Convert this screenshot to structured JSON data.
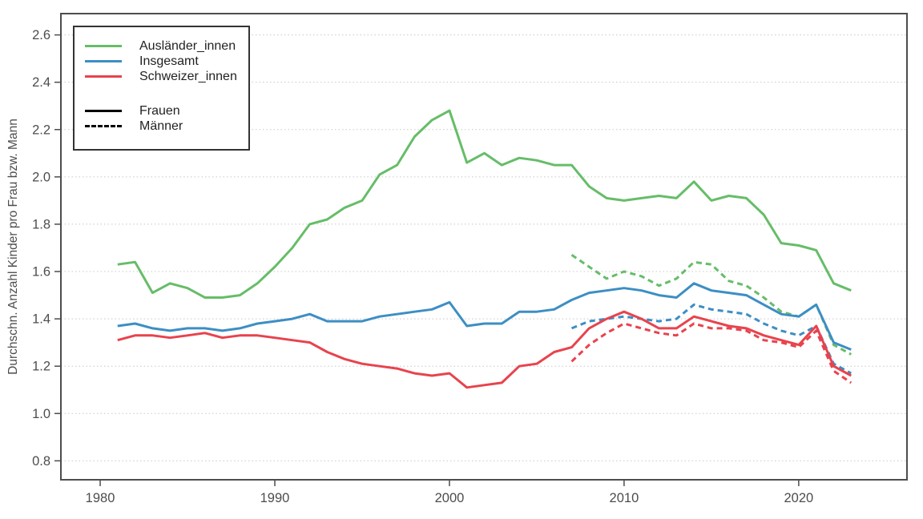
{
  "figure": {
    "y_axis_title": "Durchschn. Anzahl Kinder pro Frau bzw. Mann"
  },
  "colors": {
    "auslaender": "#66bd68",
    "insgesamt": "#3d8ec4",
    "schweizer": "#e8434d",
    "panel_border": "#4d4d4d",
    "gridline": "#c8c8c8",
    "tick_text": "#4d4d4d"
  },
  "legend": {
    "series": [
      {
        "label": "Ausländer_innen",
        "color": "#66bd68"
      },
      {
        "label": "Insgesamt",
        "color": "#3d8ec4"
      },
      {
        "label": "Schweizer_innen",
        "color": "#e8434d"
      }
    ],
    "linetypes": [
      {
        "label": "Frauen",
        "style": "solid"
      },
      {
        "label": "Männer",
        "style": "dashed"
      }
    ]
  },
  "chart_data": {
    "type": "line",
    "title": "",
    "xlabel": "",
    "ylabel": "Durchschn. Anzahl Kinder pro Frau bzw. Mann",
    "xlim": [
      1977.75,
      2026.2
    ],
    "ylim": [
      0.72,
      2.69
    ],
    "x_ticks": [
      1980,
      1990,
      2000,
      2010,
      2020
    ],
    "x_tick_labels": [
      "1980",
      "1990",
      "2000",
      "2010",
      "2020"
    ],
    "y_ticks": [
      0.8,
      1.0,
      1.2,
      1.4,
      1.6,
      1.8,
      2.0,
      2.2,
      2.4,
      2.6
    ],
    "y_tick_labels": [
      "0.8",
      "1.0",
      "1.2",
      "1.4",
      "1.6",
      "1.8",
      "2.0",
      "2.2",
      "2.4",
      "2.6"
    ],
    "grid": "horizontal-dotted",
    "legend_position": "top-left-inside",
    "years": {
      "women": [
        1981,
        1982,
        1983,
        1984,
        1985,
        1986,
        1987,
        1988,
        1989,
        1990,
        1991,
        1992,
        1993,
        1994,
        1995,
        1996,
        1997,
        1998,
        1999,
        2000,
        2001,
        2002,
        2003,
        2004,
        2005,
        2006,
        2007,
        2008,
        2009,
        2010,
        2011,
        2012,
        2013,
        2014,
        2015,
        2016,
        2017,
        2018,
        2019,
        2020,
        2021,
        2022,
        2023
      ],
      "men": [
        2007,
        2008,
        2009,
        2010,
        2011,
        2012,
        2013,
        2014,
        2015,
        2016,
        2017,
        2018,
        2019,
        2020,
        2021,
        2022,
        2023
      ]
    },
    "series": [
      {
        "id": "auslaender-innen-maenner",
        "name": "Ausländer_innen",
        "sex": "Männer",
        "line": "dashed",
        "color": "#66bd68",
        "years": "men",
        "values": [
          1.67,
          1.62,
          1.57,
          1.6,
          1.58,
          1.54,
          1.57,
          1.64,
          1.63,
          1.56,
          1.54,
          1.49,
          1.43,
          1.41,
          1.46,
          1.29,
          1.25
        ]
      },
      {
        "id": "insgesamt-maenner",
        "name": "Insgesamt",
        "sex": "Männer",
        "line": "dashed",
        "color": "#3d8ec4",
        "years": "men",
        "values": [
          1.36,
          1.39,
          1.4,
          1.41,
          1.4,
          1.39,
          1.4,
          1.46,
          1.44,
          1.43,
          1.42,
          1.38,
          1.35,
          1.33,
          1.37,
          1.21,
          1.17
        ]
      },
      {
        "id": "schweizer-innen-maenner",
        "name": "Schweizer_innen",
        "sex": "Männer",
        "line": "dashed",
        "color": "#e8434d",
        "years": "men",
        "values": [
          1.22,
          1.29,
          1.34,
          1.38,
          1.36,
          1.34,
          1.33,
          1.38,
          1.36,
          1.36,
          1.35,
          1.31,
          1.3,
          1.28,
          1.35,
          1.18,
          1.13
        ]
      },
      {
        "id": "auslaender-innen-frauen",
        "name": "Ausländer_innen",
        "sex": "Frauen",
        "line": "solid",
        "color": "#66bd68",
        "years": "women",
        "values": [
          1.63,
          1.64,
          1.51,
          1.55,
          1.53,
          1.49,
          1.49,
          1.5,
          1.55,
          1.62,
          1.7,
          1.8,
          1.82,
          1.87,
          1.9,
          2.01,
          2.05,
          2.17,
          2.24,
          2.28,
          2.06,
          2.1,
          2.05,
          2.08,
          2.07,
          2.05,
          2.05,
          1.96,
          1.91,
          1.9,
          1.91,
          1.92,
          1.91,
          1.98,
          1.9,
          1.92,
          1.91,
          1.84,
          1.72,
          1.71,
          1.69,
          1.55,
          1.52
        ]
      },
      {
        "id": "insgesamt-frauen",
        "name": "Insgesamt",
        "sex": "Frauen",
        "line": "solid",
        "color": "#3d8ec4",
        "years": "women",
        "values": [
          1.37,
          1.38,
          1.36,
          1.35,
          1.36,
          1.36,
          1.35,
          1.36,
          1.38,
          1.39,
          1.4,
          1.42,
          1.39,
          1.39,
          1.39,
          1.41,
          1.42,
          1.43,
          1.44,
          1.47,
          1.37,
          1.38,
          1.38,
          1.43,
          1.43,
          1.44,
          1.48,
          1.51,
          1.52,
          1.53,
          1.52,
          1.5,
          1.49,
          1.55,
          1.52,
          1.51,
          1.5,
          1.46,
          1.42,
          1.41,
          1.46,
          1.3,
          1.27
        ]
      },
      {
        "id": "schweizer-innen-frauen",
        "name": "Schweizer_innen",
        "sex": "Frauen",
        "line": "solid",
        "color": "#e8434d",
        "years": "women",
        "values": [
          1.31,
          1.33,
          1.33,
          1.32,
          1.33,
          1.34,
          1.32,
          1.33,
          1.33,
          1.32,
          1.31,
          1.3,
          1.26,
          1.23,
          1.21,
          1.2,
          1.19,
          1.17,
          1.16,
          1.17,
          1.11,
          1.12,
          1.13,
          1.2,
          1.21,
          1.26,
          1.28,
          1.36,
          1.4,
          1.43,
          1.4,
          1.36,
          1.36,
          1.41,
          1.39,
          1.37,
          1.36,
          1.33,
          1.31,
          1.29,
          1.37,
          1.2,
          1.16
        ]
      }
    ]
  }
}
